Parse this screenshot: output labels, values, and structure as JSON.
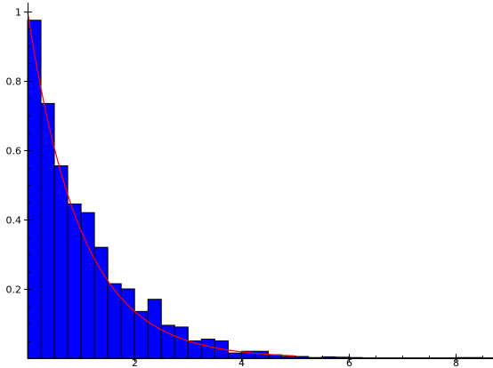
{
  "chart_data": {
    "type": "bar",
    "title": "",
    "xlabel": "",
    "ylabel": "",
    "xlim": [
      0,
      8.7
    ],
    "ylim": [
      0,
      1.0
    ],
    "grid": false,
    "legend": "none",
    "x_ticks": [
      2,
      4,
      6,
      8
    ],
    "x_tick_labels": [
      "2",
      "4",
      "6",
      "8"
    ],
    "x_minor_step": 0.5,
    "y_ticks": [
      0.2,
      0.4,
      0.6,
      0.8,
      1.0
    ],
    "y_tick_labels": [
      "0.2",
      "0.4",
      "0.6",
      "0.8",
      "1"
    ],
    "y_minor_step": 0.05,
    "bin_width": 0.25,
    "series": [
      {
        "type": "histogram",
        "color": "#0000ff",
        "edge_color": "#000000",
        "bin_starts": [
          0,
          0.25,
          0.5,
          0.75,
          1.0,
          1.25,
          1.5,
          1.75,
          2.0,
          2.25,
          2.5,
          2.75,
          3.0,
          3.25,
          3.5,
          3.75,
          4.0,
          4.25,
          4.5,
          4.75,
          5.0,
          5.25,
          5.5,
          5.75,
          6.0,
          6.25,
          6.5,
          6.75,
          7.0,
          7.25,
          7.5,
          7.75,
          8.0,
          8.25,
          8.5
        ],
        "values": [
          0.975,
          0.735,
          0.555,
          0.445,
          0.42,
          0.32,
          0.215,
          0.2,
          0.135,
          0.17,
          0.095,
          0.09,
          0.05,
          0.055,
          0.05,
          0.015,
          0.02,
          0.02,
          0.01,
          0.005,
          0.005,
          0.002,
          0.004,
          0.003,
          0.002,
          0.001,
          0.001,
          0.001,
          0.001,
          0.001,
          0.001,
          0.001,
          0.002,
          0.002,
          0.001
        ]
      },
      {
        "type": "line",
        "color": "#ff0000",
        "function": "exp(-x)",
        "x_range": [
          0,
          5
        ]
      }
    ]
  }
}
